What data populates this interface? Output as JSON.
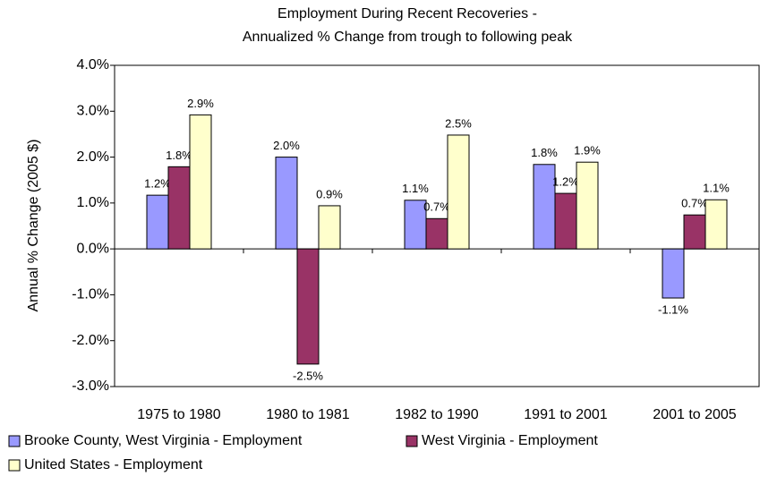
{
  "chart_data": {
    "type": "bar",
    "title": "Employment During Recent Recoveries -",
    "subtitle": "Annualized % Change from trough to following peak",
    "y_label": "Annual % Change (2005 $)",
    "categories": [
      "1975 to 1980",
      "1980 to 1981",
      "1982 to 1990",
      "1991 to 2001",
      "2001 to 2005"
    ],
    "series": [
      {
        "name": "Brooke County, West Virginia - Employment",
        "color": "#9999ff",
        "values": [
          1.17,
          2.0,
          1.06,
          1.84,
          -1.07
        ],
        "value_labels": [
          "1.2%",
          "2.0%",
          "1.1%",
          "1.8%",
          "-1.1%"
        ]
      },
      {
        "name": "West Virginia - Employment",
        "color": "#993366",
        "values": [
          1.79,
          -2.51,
          0.66,
          1.21,
          0.74
        ],
        "value_labels": [
          "1.8%",
          "-2.5%",
          "0.7%",
          "1.2%",
          "0.7%"
        ]
      },
      {
        "name": "United States - Employment",
        "color": "#ffffcc",
        "values": [
          2.92,
          0.94,
          2.48,
          1.89,
          1.07
        ],
        "value_labels": [
          "2.9%",
          "0.9%",
          "2.5%",
          "1.9%",
          "1.1%"
        ]
      }
    ],
    "ylim": [
      -3,
      4
    ],
    "yticks": [
      {
        "value": -3,
        "label": "-3.0%"
      },
      {
        "value": -2,
        "label": "-2.0%"
      },
      {
        "value": -1,
        "label": "-1.0%"
      },
      {
        "value": 0,
        "label": "0.0%"
      },
      {
        "value": 1,
        "label": "1.0%"
      },
      {
        "value": 2,
        "label": "2.0%"
      },
      {
        "value": 3,
        "label": "3.0%"
      },
      {
        "value": 4,
        "label": "4.0%"
      }
    ],
    "grid": false
  }
}
